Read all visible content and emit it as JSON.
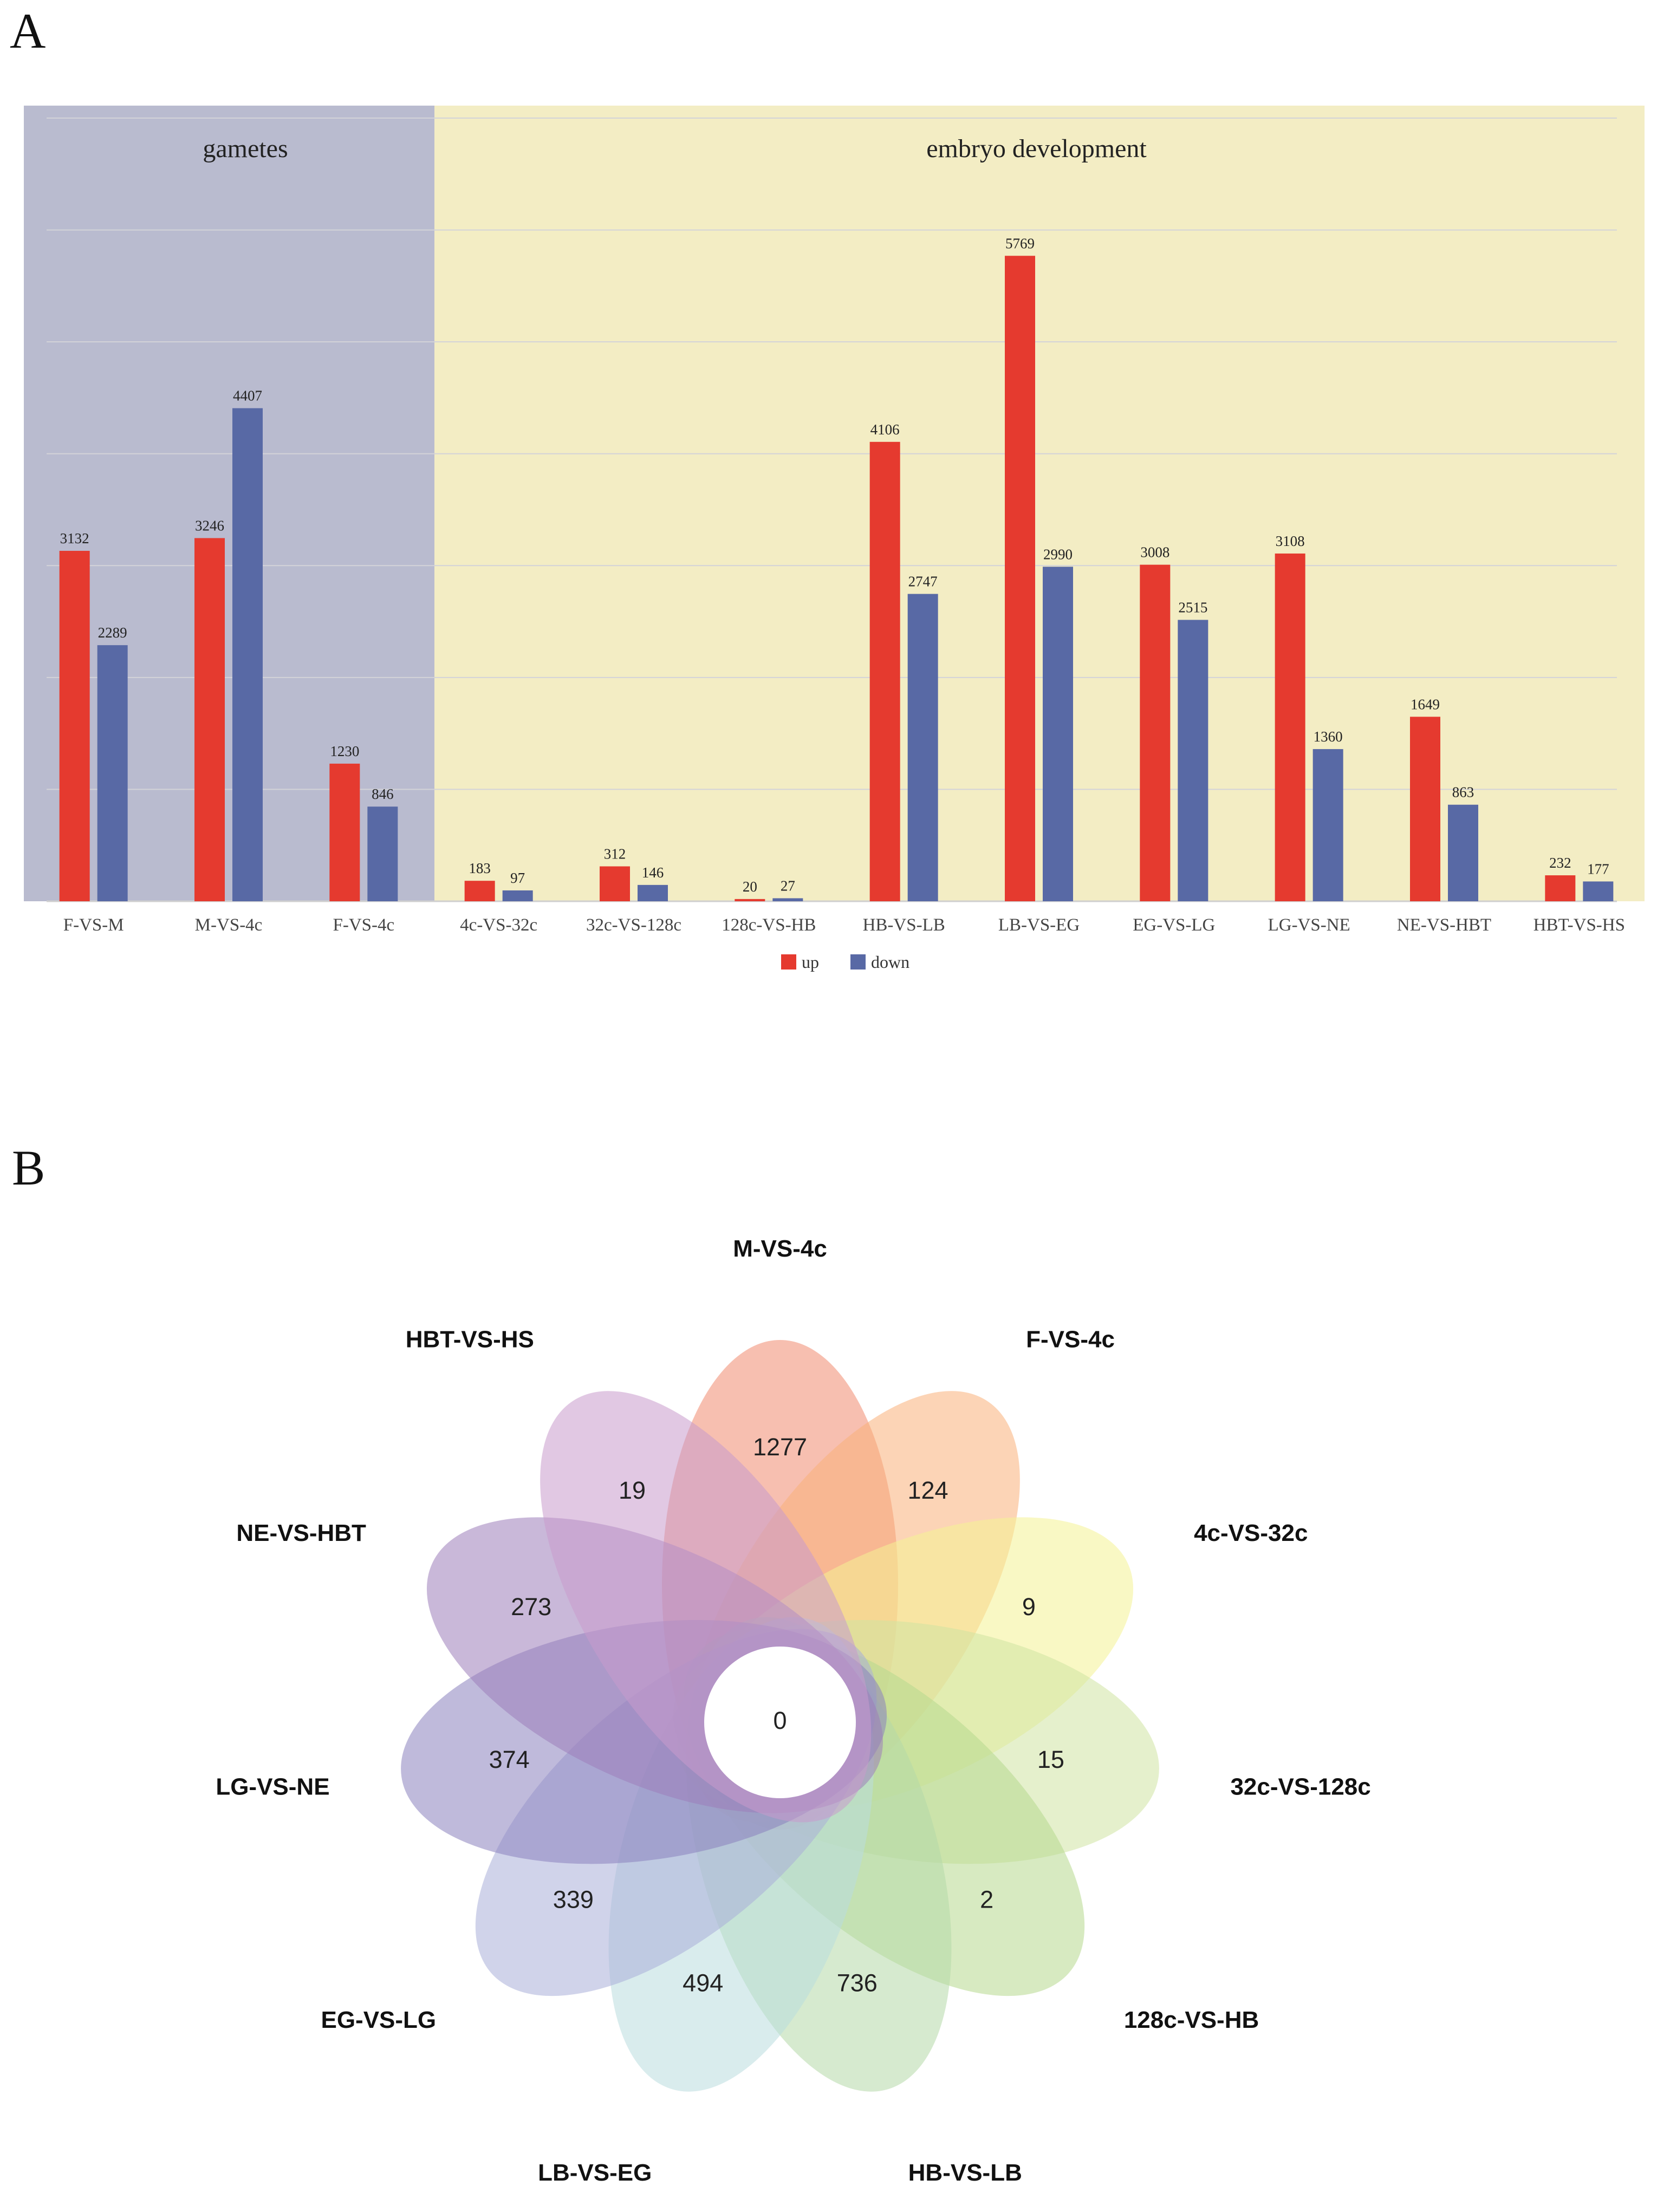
{
  "panel_a": {
    "letter": "A"
  },
  "panel_b": {
    "letter": "B"
  },
  "chart_data": [
    {
      "type": "bar",
      "title": "",
      "xlabel": "",
      "ylabel": "",
      "ylim": [
        0,
        7000
      ],
      "grid": true,
      "regions": [
        {
          "label": "gametes",
          "color": "#b9bbcf",
          "categories": [
            "F-VS-M",
            "M-VS-4c",
            "F-VS-4c"
          ]
        },
        {
          "label": "embryo development",
          "color": "#f3edc4",
          "categories": [
            "4c-VS-32c",
            "32c-VS-128c",
            "128c-VS-HB",
            "HB-VS-LB",
            "LB-VS-EG",
            "EG-VS-LG",
            "LG-VS-NE",
            "NE-VS-HBT",
            "HBT-VS-HS"
          ]
        }
      ],
      "categories": [
        "F-VS-M",
        "M-VS-4c",
        "F-VS-4c",
        "4c-VS-32c",
        "32c-VS-128c",
        "128c-VS-HB",
        "HB-VS-LB",
        "LB-VS-EG",
        "EG-VS-LG",
        "LG-VS-NE",
        "NE-VS-HBT",
        "HBT-VS-HS"
      ],
      "series": [
        {
          "name": "up",
          "color": "#e53a2f",
          "values": [
            3132,
            3246,
            1230,
            183,
            312,
            20,
            4106,
            5769,
            3008,
            3108,
            1649,
            232
          ]
        },
        {
          "name": "down",
          "color": "#5869a5",
          "values": [
            2289,
            4407,
            846,
            97,
            146,
            27,
            2747,
            2990,
            2515,
            1360,
            863,
            177
          ]
        }
      ],
      "legend": "bottom-center"
    },
    {
      "type": "venn",
      "title": "",
      "center_value": "0",
      "sets": [
        {
          "name": "M-VS-4c",
          "unique": "1277",
          "color": "#f08a70"
        },
        {
          "name": "F-VS-4c",
          "unique": "124",
          "color": "#f9b07a"
        },
        {
          "name": "4c-VS-32c",
          "unique": "9",
          "color": "#f4f294"
        },
        {
          "name": "32c-VS-128c",
          "unique": "15",
          "color": "#cfe3a2"
        },
        {
          "name": "128c-VS-HB",
          "unique": "2",
          "color": "#b6d88e"
        },
        {
          "name": "HB-VS-LB",
          "unique": "736",
          "color": "#b4d9a8"
        },
        {
          "name": "LB-VS-EG",
          "unique": "494",
          "color": "#b9dcde"
        },
        {
          "name": "EG-VS-LG",
          "unique": "339",
          "color": "#a9aed8"
        },
        {
          "name": "LG-VS-NE",
          "unique": "374",
          "color": "#8a82bd"
        },
        {
          "name": "NE-VS-HBT",
          "unique": "273",
          "color": "#9c7dba"
        },
        {
          "name": "HBT-VS-HS",
          "unique": "19",
          "color": "#c99bcc"
        }
      ]
    }
  ]
}
